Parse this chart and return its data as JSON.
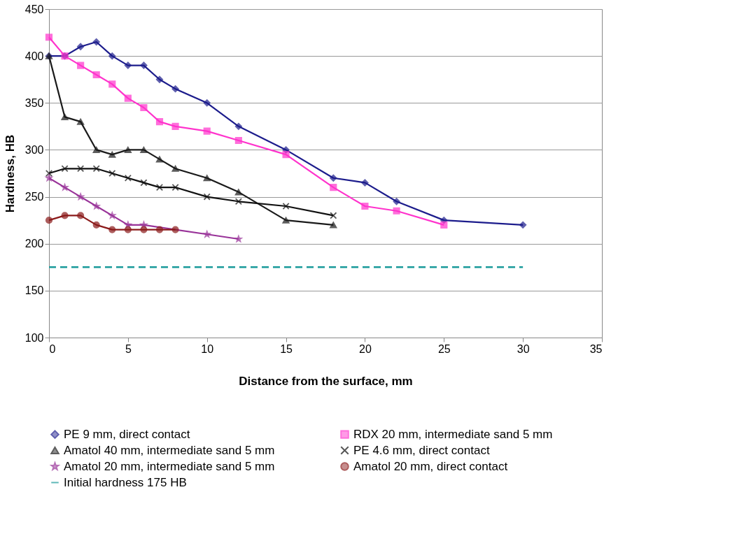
{
  "chart_data": {
    "type": "line",
    "xlabel": "Distance from the surface, mm",
    "ylabel": "Hardness, HB",
    "xlim": [
      0,
      35
    ],
    "xticks": [
      0,
      5,
      10,
      15,
      20,
      25,
      30,
      35
    ],
    "ylim": [
      100,
      450
    ],
    "yticks": [
      100,
      150,
      200,
      250,
      300,
      350,
      400,
      450
    ],
    "grid": "y",
    "legend": "bottom",
    "series": [
      {
        "name": "PE 9 mm, direct contact",
        "color": "#1c1c8c",
        "marker": "diamond",
        "x": [
          0,
          1,
          2,
          3,
          4,
          5,
          6,
          7,
          8,
          10,
          12,
          15,
          18,
          20,
          22,
          25,
          30
        ],
        "values": [
          400,
          400,
          410,
          415,
          400,
          390,
          390,
          375,
          365,
          350,
          325,
          300,
          270,
          265,
          245,
          225,
          220
        ]
      },
      {
        "name": "RDX 20 mm, intermediate sand 5 mm",
        "color": "#ff33cc",
        "marker": "square",
        "x": [
          0,
          1,
          2,
          3,
          4,
          5,
          6,
          7,
          8,
          10,
          12,
          15,
          18,
          20,
          22,
          25
        ],
        "values": [
          420,
          400,
          390,
          380,
          370,
          355,
          345,
          330,
          325,
          320,
          310,
          295,
          260,
          240,
          235,
          220
        ]
      },
      {
        "name": "Amatol 40 mm, intermediate sand 5 mm",
        "color": "#1a1a1a",
        "marker": "triangle",
        "x": [
          0,
          1,
          2,
          3,
          4,
          5,
          6,
          7,
          8,
          10,
          12,
          15,
          18
        ],
        "values": [
          400,
          335,
          330,
          300,
          295,
          300,
          300,
          290,
          280,
          270,
          255,
          225,
          220
        ]
      },
      {
        "name": "PE 4.6 mm, direct contact",
        "color": "#111111",
        "marker": "cross",
        "x": [
          0,
          1,
          2,
          3,
          4,
          5,
          6,
          7,
          8,
          10,
          12,
          15,
          18
        ],
        "values": [
          275,
          280,
          280,
          280,
          275,
          270,
          265,
          260,
          260,
          250,
          245,
          240,
          230
        ]
      },
      {
        "name": "Amatol 20 mm, intermediate sand 5 mm",
        "color": "#993399",
        "marker": "star",
        "x": [
          0,
          1,
          2,
          3,
          4,
          5,
          6,
          10,
          12
        ],
        "values": [
          270,
          260,
          250,
          240,
          230,
          220,
          220,
          210,
          205
        ]
      },
      {
        "name": "Amatol 20 mm, direct contact",
        "color": "#8b1a1a",
        "marker": "circle",
        "x": [
          0,
          1,
          2,
          3,
          4,
          5,
          6,
          7,
          8
        ],
        "values": [
          225,
          230,
          230,
          220,
          215,
          215,
          215,
          215,
          215
        ]
      },
      {
        "name": "Initial hardness 175 HB",
        "color": "#1a9a9a",
        "marker": "none",
        "line_style": "dashed",
        "x": [
          0,
          30
        ],
        "values": [
          175,
          175
        ]
      }
    ]
  }
}
